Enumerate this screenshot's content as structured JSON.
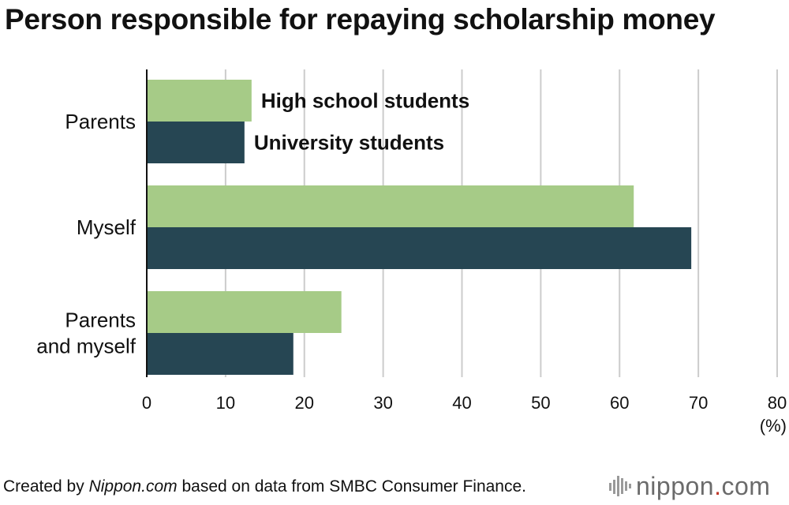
{
  "title": "Person responsible for repaying scholarship money",
  "chart_data": {
    "type": "bar",
    "orientation": "horizontal",
    "title": "Person responsible for repaying scholarship money",
    "categories": [
      "Parents",
      "Myself",
      "Parents and myself"
    ],
    "category_lines": [
      [
        "Parents"
      ],
      [
        "Myself"
      ],
      [
        "Parents",
        "and myself"
      ]
    ],
    "series": [
      {
        "name": "High school students",
        "values": [
          13.3,
          61.8,
          24.7
        ],
        "color": "#a6cb87"
      },
      {
        "name": "University students",
        "values": [
          12.4,
          69.1,
          18.6
        ],
        "color": "#264653"
      }
    ],
    "xlim": [
      0,
      80
    ],
    "xticks": [
      0,
      10,
      20,
      30,
      40,
      50,
      60,
      70,
      80
    ],
    "xunit": "(%)",
    "grid": true,
    "legend": "inline labels beside the first category's bars"
  },
  "footer": {
    "prefix": "Created by ",
    "source_italic": "Nippon.com",
    "suffix": " based on data from SMBC Consumer Finance."
  },
  "logo": {
    "name": "nippon",
    "dot": ".",
    "tld": "com",
    "accent": "#c0392b",
    "color": "#6b6b6b"
  }
}
